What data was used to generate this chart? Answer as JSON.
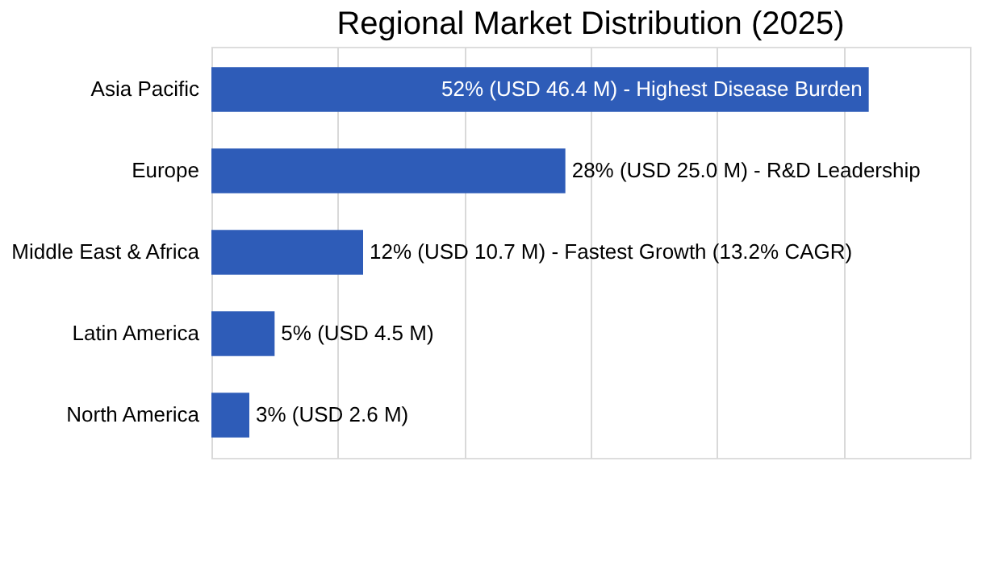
{
  "chart_data": {
    "type": "bar",
    "orientation": "horizontal",
    "title": "Regional Market Distribution (2025)",
    "categories": [
      "Asia Pacific",
      "Europe",
      "Middle East & Africa",
      "Latin America",
      "North America"
    ],
    "values": [
      52,
      28,
      12,
      5,
      3
    ],
    "value_labels": [
      "52% (USD 46.4 M) - Highest Disease Burden",
      "28% (USD 25.0 M) - R&D Leadership",
      "12% (USD 10.7 M) - Fastest Growth (13.2% CAGR)",
      "5% (USD 4.5 M)",
      "3% (USD 2.6 M)"
    ],
    "color": "#2e5cb8",
    "xlim": [
      0,
      60
    ],
    "xticks": [
      {
        "value": 0,
        "label": null
      },
      {
        "value": 10,
        "label": null
      },
      {
        "value": 20,
        "label": null
      },
      {
        "value": 30,
        "label": null
      },
      {
        "value": 40,
        "label": null
      },
      {
        "value": 50,
        "label": null
      },
      {
        "value": 60,
        "label": null
      }
    ],
    "tick_labels": "y",
    "grid": "x"
  }
}
